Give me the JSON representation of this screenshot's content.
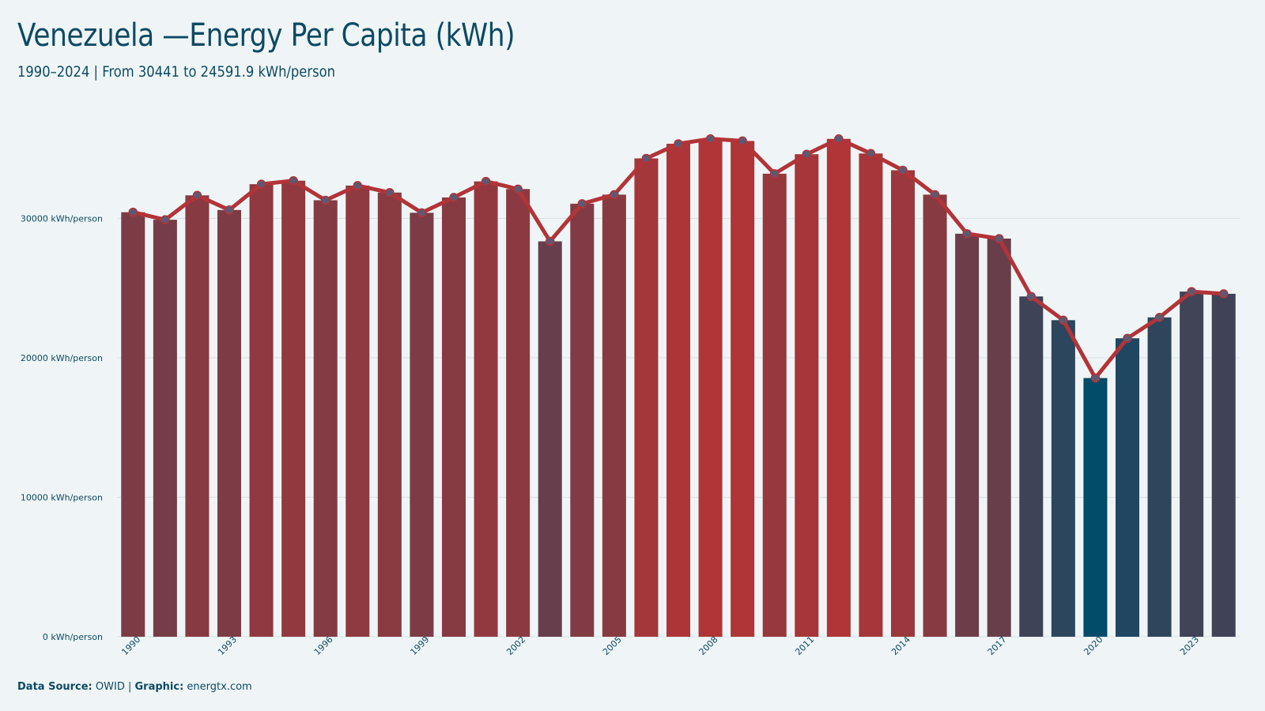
{
  "header": {
    "title": "Venezuela —Energy Per Capita (kWh)",
    "subtitle": "1990–2024 | From 30441 to 24591.9 kWh/person"
  },
  "footer": {
    "source_label": "Data Source:",
    "source_value": "OWID",
    "separator": " | ",
    "graphic_label": "Graphic:",
    "graphic_value": "energtx.com"
  },
  "colors": {
    "background": "#eff5f6",
    "text": "#0d4a63",
    "line": "#b23438",
    "marker": "#5b5a73",
    "bar_high": "#b13536",
    "bar_low": "#024b69",
    "grid": "#d7e1e5"
  },
  "chart_data": {
    "type": "bar",
    "title": "Venezuela —Energy Per Capita (kWh)",
    "subtitle": "1990–2024 | From 30441 to 24591.9 kWh/person",
    "unit": "kWh/person",
    "xlabel": "",
    "ylabel": "",
    "ylim": [
      0,
      37500
    ],
    "y_ticks": [
      0,
      10000,
      20000,
      30000
    ],
    "y_tick_labels": [
      "0 kWh/person",
      "10000 kWh/person",
      "20000 kWh/person",
      "30000 kWh/person"
    ],
    "x_tick_labels": [
      "1990",
      "1993",
      "1996",
      "1999",
      "2002",
      "2005",
      "2008",
      "2011",
      "2014",
      "2017",
      "2020",
      "2023"
    ],
    "grid": true,
    "overlay": "line with markers",
    "categories": [
      "1990",
      "1991",
      "1992",
      "1993",
      "1994",
      "1995",
      "1996",
      "1997",
      "1998",
      "1999",
      "2000",
      "2001",
      "2002",
      "2003",
      "2004",
      "2005",
      "2006",
      "2007",
      "2008",
      "2009",
      "2010",
      "2011",
      "2012",
      "2013",
      "2014",
      "2015",
      "2016",
      "2017",
      "2018",
      "2019",
      "2020",
      "2021",
      "2022",
      "2023",
      "2024"
    ],
    "values": [
      30441,
      29900,
      31650,
      30600,
      32450,
      32700,
      31300,
      32350,
      31850,
      30400,
      31500,
      32650,
      32100,
      28350,
      31050,
      31700,
      34300,
      35350,
      35700,
      35550,
      33200,
      34600,
      35700,
      34650,
      33450,
      31700,
      28900,
      28550,
      24400,
      22700,
      18550,
      21400,
      22900,
      24750,
      24591.9
    ]
  }
}
